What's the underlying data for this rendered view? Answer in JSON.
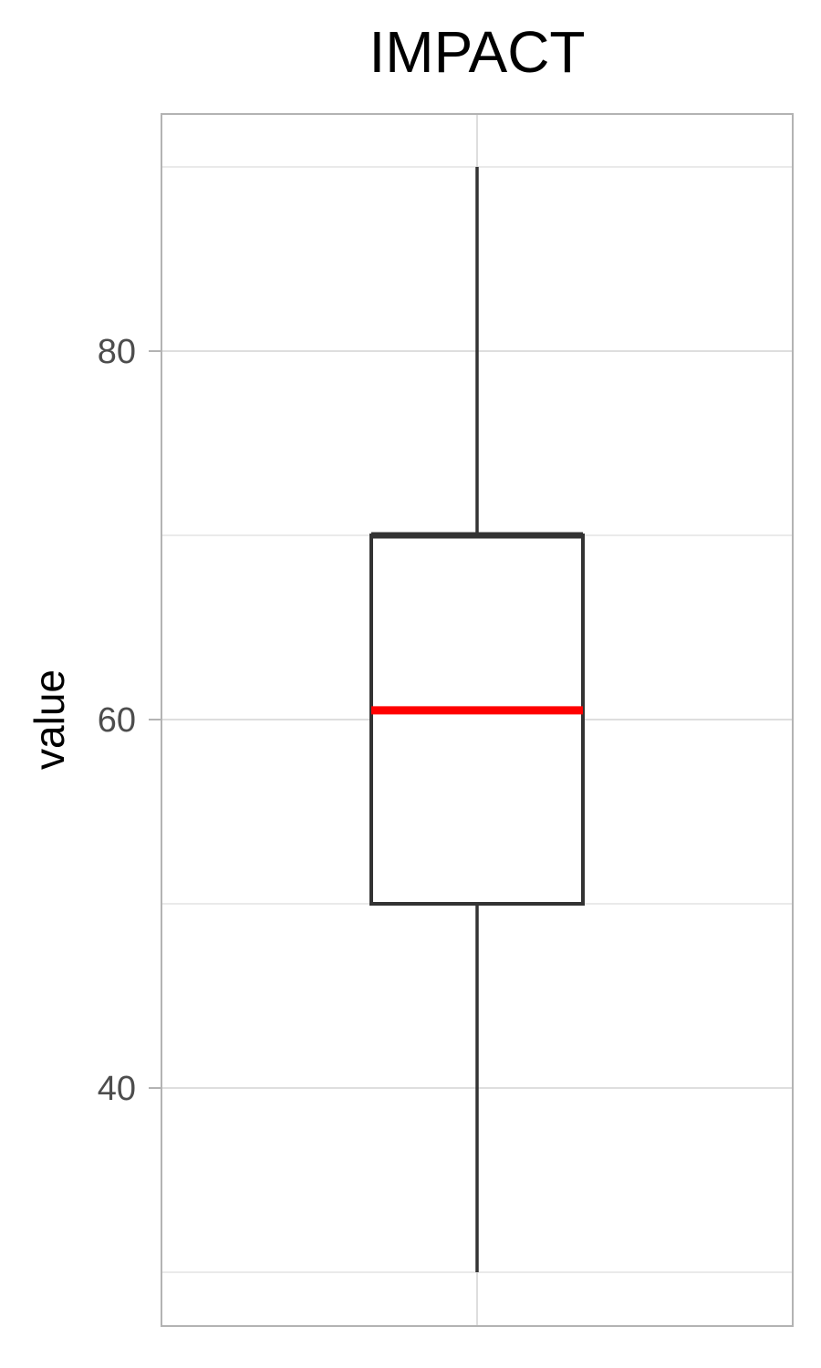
{
  "chart_data": {
    "type": "box",
    "title": "IMPACT",
    "xlabel": "",
    "ylabel": "value",
    "ylim": [
      27,
      92
    ],
    "yticks": [
      40,
      60,
      80
    ],
    "yticks_labels": [
      "40",
      "60",
      "80"
    ],
    "minor_gridlines": [
      30,
      50,
      70,
      90
    ],
    "grid": true,
    "legend": "none",
    "series": [
      {
        "stats": {
          "whisker_low": 30,
          "q1": 50,
          "median": 60.5,
          "q3": 70,
          "whisker_high": 90
        }
      }
    ],
    "colors": {
      "median": "#ff0000",
      "box_stroke": "#333333",
      "grid": "#dedede",
      "panel_border": "#b3b3b3",
      "tick_label": "#4d4d4d"
    }
  }
}
